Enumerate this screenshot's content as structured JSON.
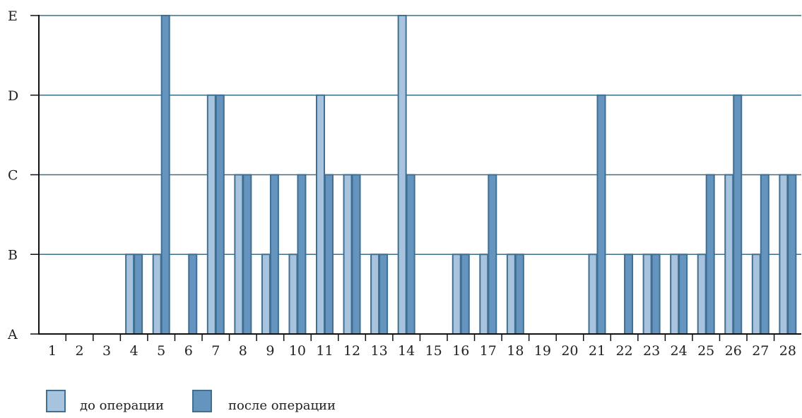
{
  "chart_data": {
    "type": "bar",
    "title": "",
    "xlabel": "",
    "ylabel": "",
    "y_categories": [
      "A",
      "B",
      "C",
      "D",
      "E"
    ],
    "ylim": [
      0,
      4
    ],
    "grid": true,
    "legend_position": "bottom-left",
    "categories": [
      "1",
      "2",
      "3",
      "4",
      "5",
      "6",
      "7",
      "8",
      "9",
      "10",
      "11",
      "12",
      "13",
      "14",
      "15",
      "16",
      "17",
      "18",
      "19",
      "20",
      "21",
      "22",
      "23",
      "24",
      "25",
      "26",
      "27",
      "28"
    ],
    "series": [
      {
        "name": "до операции",
        "color": "#a8c3de",
        "values": [
          0,
          0,
          0,
          1,
          1,
          0,
          3,
          2,
          1,
          1,
          3,
          2,
          1,
          4,
          0,
          1,
          1,
          1,
          0,
          0,
          1,
          0,
          1,
          1,
          1,
          2,
          1,
          2
        ]
      },
      {
        "name": "после операции",
        "color": "#6595be",
        "values": [
          0,
          0,
          0,
          1,
          4,
          1,
          3,
          2,
          2,
          2,
          2,
          2,
          1,
          2,
          0,
          1,
          2,
          1,
          0,
          0,
          3,
          1,
          1,
          1,
          2,
          3,
          2,
          2
        ]
      }
    ]
  }
}
